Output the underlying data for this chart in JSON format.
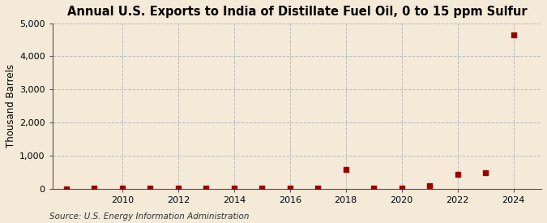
{
  "title": "Annual U.S. Exports to India of Distillate Fuel Oil, 0 to 15 ppm Sulfur",
  "ylabel": "Thousand Barrels",
  "source": "Source: U.S. Energy Information Administration",
  "background_color": "#f5ead8",
  "plot_background_color": "#f5ead8",
  "years": [
    2008,
    2009,
    2010,
    2011,
    2012,
    2013,
    2014,
    2015,
    2016,
    2017,
    2018,
    2019,
    2020,
    2021,
    2022,
    2023,
    2024
  ],
  "values": [
    0,
    2,
    2,
    20,
    5,
    2,
    5,
    5,
    5,
    5,
    570,
    10,
    10,
    90,
    440,
    480,
    4660
  ],
  "ylim": [
    0,
    5000
  ],
  "yticks": [
    0,
    1000,
    2000,
    3000,
    4000,
    5000
  ],
  "ytick_labels": [
    "0",
    "1,000",
    "2,000",
    "3,000",
    "4,000",
    "5,000"
  ],
  "xticks": [
    2010,
    2012,
    2014,
    2016,
    2018,
    2020,
    2022,
    2024
  ],
  "xlim": [
    2007.5,
    2025
  ],
  "marker_color": "#990000",
  "marker_size": 4,
  "grid_color": "#bbbbbb",
  "grid_style": "--",
  "title_fontsize": 10.5,
  "axis_fontsize": 8.5,
  "tick_fontsize": 8,
  "source_fontsize": 7.5
}
